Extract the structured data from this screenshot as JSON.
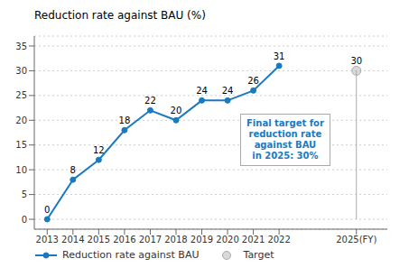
{
  "chart_data": {
    "type": "line",
    "title": "Reduction rate against BAU (%)",
    "x": [
      2013,
      2014,
      2015,
      2016,
      2017,
      2018,
      2019,
      2020,
      2021,
      2022,
      2025
    ],
    "series": [
      {
        "name": "Reduction rate against BAU",
        "color": "#1a7abf",
        "marker": "circle",
        "values": [
          0,
          8,
          12,
          18,
          22,
          20,
          24,
          24,
          26,
          31,
          null
        ]
      },
      {
        "name": "Target",
        "color": "#aaaaaa",
        "marker": "circle",
        "line_style": "none",
        "values": [
          null,
          null,
          null,
          null,
          null,
          null,
          null,
          null,
          null,
          null,
          30
        ]
      }
    ],
    "xlim": [
      2012.5,
      2026.2
    ],
    "xticks": [
      2013,
      2014,
      2015,
      2016,
      2017,
      2018,
      2019,
      2020,
      2021,
      2022,
      {
        "value": 2025,
        "label": "2025(FY)"
      }
    ],
    "ylim": [
      -2,
      37
    ],
    "yticks": [
      0,
      5,
      10,
      15,
      20,
      25,
      30,
      35
    ],
    "grid": true,
    "data_labels": true,
    "legend": "lower left",
    "annotations": [
      "Final target for\nreduction rate\nagainst BAU\nin 2025: 30%"
    ]
  }
}
